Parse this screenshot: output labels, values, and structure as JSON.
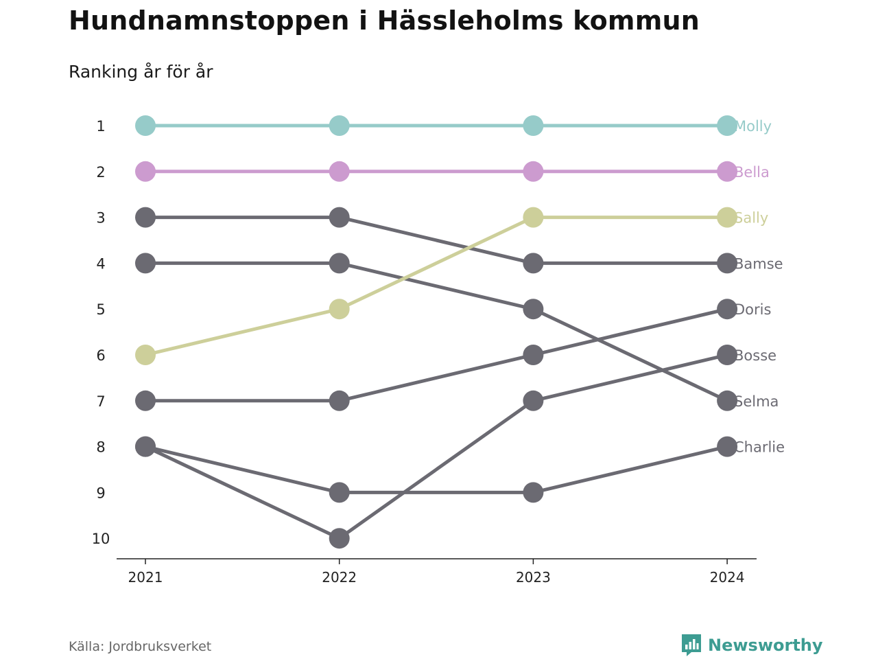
{
  "header": {
    "title": "Hundnamnstoppen i Hässleholms kommun",
    "subtitle": "Ranking år för år"
  },
  "footer": {
    "source": "Källa: Jordbruksverket",
    "brand": "Newsworthy",
    "brand_color": "#3d9c92",
    "brand_icon": "bar-chart-icon"
  },
  "chart_data": {
    "type": "line",
    "subtype": "bump-chart",
    "x": [
      "2021",
      "2022",
      "2023",
      "2024"
    ],
    "y_ticks": [
      "1",
      "2",
      "3",
      "4",
      "5",
      "6",
      "7",
      "8",
      "9",
      "10"
    ],
    "ylim": [
      1,
      10
    ],
    "y_inverted": true,
    "grid": false,
    "legend": "direct-labels-right",
    "series": [
      {
        "name": "Molly",
        "ranks": [
          1,
          1,
          1,
          1
        ],
        "color": "#96cbc9"
      },
      {
        "name": "Bella",
        "ranks": [
          2,
          2,
          2,
          2
        ],
        "color": "#cc9bcf"
      },
      {
        "name": "Sally",
        "ranks": [
          6,
          5,
          3,
          3
        ],
        "color": "#cdcf9a"
      },
      {
        "name": "Bamse",
        "ranks": [
          3,
          3,
          4,
          4
        ],
        "color": "#6b6a72"
      },
      {
        "name": "Doris",
        "ranks": [
          7,
          7,
          6,
          5
        ],
        "color": "#6b6a72"
      },
      {
        "name": "Bosse",
        "ranks": [
          8,
          10,
          7,
          6
        ],
        "color": "#6b6a72"
      },
      {
        "name": "Selma",
        "ranks": [
          4,
          4,
          5,
          7
        ],
        "color": "#6b6a72"
      },
      {
        "name": "Charlie",
        "ranks": [
          8,
          9,
          9,
          8
        ],
        "color": "#6b6a72"
      }
    ]
  }
}
